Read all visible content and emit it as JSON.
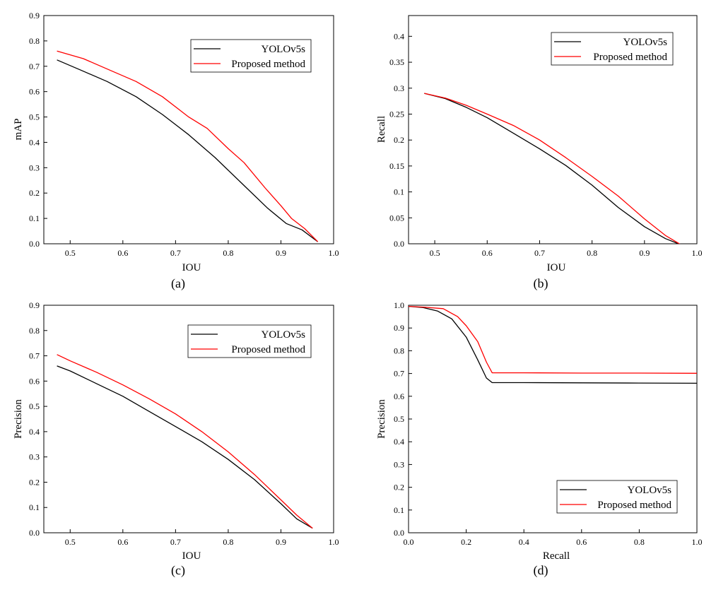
{
  "chart_data": [
    {
      "type": "line",
      "caption": "(a)",
      "xlabel": "IOU",
      "ylabel": "mAP",
      "xlim": [
        0.45,
        1.0
      ],
      "ylim": [
        0.0,
        0.9
      ],
      "xticks": [
        "0.5",
        "0.6",
        "0.7",
        "0.8",
        "0.9",
        "1.0"
      ],
      "xtick_values": [
        0.5,
        0.6,
        0.7,
        0.8,
        0.9,
        1.0
      ],
      "yticks": [
        "0.0",
        "0.1",
        "0.2",
        "0.3",
        "0.4",
        "0.5",
        "0.6",
        "0.7",
        "0.8",
        "0.9"
      ],
      "ytick_values": [
        0.0,
        0.1,
        0.2,
        0.3,
        0.4,
        0.5,
        0.6,
        0.7,
        0.8,
        0.9
      ],
      "legend_position": "top-right",
      "series": [
        {
          "name": "YOLOv5s",
          "color": "#000000",
          "x": [
            0.475,
            0.52,
            0.57,
            0.625,
            0.675,
            0.725,
            0.775,
            0.825,
            0.875,
            0.91,
            0.94,
            0.97
          ],
          "y": [
            0.725,
            0.685,
            0.64,
            0.58,
            0.51,
            0.43,
            0.34,
            0.24,
            0.14,
            0.08,
            0.055,
            0.008
          ]
        },
        {
          "name": "Proposed method",
          "color": "#ff0000",
          "x": [
            0.475,
            0.525,
            0.575,
            0.625,
            0.675,
            0.725,
            0.76,
            0.8,
            0.83,
            0.87,
            0.9,
            0.92,
            0.945,
            0.97
          ],
          "y": [
            0.76,
            0.73,
            0.685,
            0.64,
            0.58,
            0.5,
            0.455,
            0.375,
            0.32,
            0.22,
            0.15,
            0.1,
            0.06,
            0.008
          ]
        }
      ]
    },
    {
      "type": "line",
      "caption": "(b)",
      "xlabel": "IOU",
      "ylabel": "Recall",
      "xlim": [
        0.45,
        1.0
      ],
      "ylim": [
        0.0,
        0.44
      ],
      "xticks": [
        "0.5",
        "0.6",
        "0.7",
        "0.8",
        "0.9",
        "1.0"
      ],
      "xtick_values": [
        0.5,
        0.6,
        0.7,
        0.8,
        0.9,
        1.0
      ],
      "yticks": [
        "0.0",
        "0.05",
        "0.1",
        "0.15",
        "0.2",
        "0.25",
        "0.3",
        "0.35",
        "0.4"
      ],
      "ytick_values": [
        0.0,
        0.05,
        0.1,
        0.15,
        0.2,
        0.25,
        0.3,
        0.35,
        0.4
      ],
      "legend_position": "top-right",
      "series": [
        {
          "name": "YOLOv5s",
          "color": "#000000",
          "x": [
            0.48,
            0.52,
            0.56,
            0.6,
            0.65,
            0.7,
            0.75,
            0.8,
            0.85,
            0.9,
            0.94,
            0.97
          ],
          "y": [
            0.29,
            0.28,
            0.263,
            0.243,
            0.213,
            0.183,
            0.151,
            0.113,
            0.07,
            0.033,
            0.01,
            -0.002
          ]
        },
        {
          "name": "Proposed method",
          "color": "#ff0000",
          "x": [
            0.48,
            0.52,
            0.56,
            0.6,
            0.65,
            0.7,
            0.75,
            0.8,
            0.85,
            0.9,
            0.94,
            0.97
          ],
          "y": [
            0.29,
            0.281,
            0.267,
            0.25,
            0.228,
            0.2,
            0.166,
            0.13,
            0.092,
            0.048,
            0.016,
            -0.002
          ]
        }
      ]
    },
    {
      "type": "line",
      "caption": "(c)",
      "xlabel": "IOU",
      "ylabel": "Precision",
      "xlim": [
        0.45,
        1.0
      ],
      "ylim": [
        0.0,
        0.9
      ],
      "xticks": [
        "0.5",
        "0.6",
        "0.7",
        "0.8",
        "0.9",
        "1.0"
      ],
      "xtick_values": [
        0.5,
        0.6,
        0.7,
        0.8,
        0.9,
        1.0
      ],
      "yticks": [
        "0.0",
        "0.1",
        "0.2",
        "0.3",
        "0.4",
        "0.5",
        "0.6",
        "0.7",
        "0.8",
        "0.9"
      ],
      "ytick_values": [
        0.0,
        0.1,
        0.2,
        0.3,
        0.4,
        0.5,
        0.6,
        0.7,
        0.8,
        0.9
      ],
      "legend_position": "top-right",
      "series": [
        {
          "name": "YOLOv5s",
          "color": "#000000",
          "x": [
            0.475,
            0.5,
            0.55,
            0.6,
            0.65,
            0.7,
            0.75,
            0.8,
            0.85,
            0.9,
            0.93,
            0.96
          ],
          "y": [
            0.66,
            0.64,
            0.59,
            0.54,
            0.48,
            0.42,
            0.36,
            0.29,
            0.21,
            0.115,
            0.055,
            0.018
          ]
        },
        {
          "name": "Proposed method",
          "color": "#ff0000",
          "x": [
            0.475,
            0.5,
            0.55,
            0.6,
            0.65,
            0.7,
            0.75,
            0.8,
            0.85,
            0.9,
            0.93,
            0.96
          ],
          "y": [
            0.705,
            0.68,
            0.635,
            0.585,
            0.53,
            0.47,
            0.4,
            0.32,
            0.23,
            0.13,
            0.07,
            0.018
          ]
        }
      ]
    },
    {
      "type": "line",
      "caption": "(d)",
      "xlabel": "Recall",
      "ylabel": "Precision",
      "xlim": [
        0.0,
        1.0
      ],
      "ylim": [
        0.0,
        1.0
      ],
      "xticks": [
        "0.0",
        "0.2",
        "0.4",
        "0.6",
        "0.8",
        "1.0"
      ],
      "xtick_values": [
        0.0,
        0.2,
        0.4,
        0.6,
        0.8,
        1.0
      ],
      "yticks": [
        "0.0",
        "0.1",
        "0.2",
        "0.3",
        "0.4",
        "0.5",
        "0.6",
        "0.7",
        "0.8",
        "0.9",
        "1.0"
      ],
      "ytick_values": [
        0.0,
        0.1,
        0.2,
        0.3,
        0.4,
        0.5,
        0.6,
        0.7,
        0.8,
        0.9,
        1.0
      ],
      "legend_position": "bottom-right",
      "series": [
        {
          "name": "YOLOv5s",
          "color": "#000000",
          "x": [
            0.0,
            0.05,
            0.1,
            0.15,
            0.2,
            0.24,
            0.27,
            0.29,
            0.4,
            0.6,
            0.8,
            1.0
          ],
          "y": [
            0.995,
            0.99,
            0.975,
            0.94,
            0.86,
            0.76,
            0.68,
            0.66,
            0.66,
            0.659,
            0.658,
            0.657
          ]
        },
        {
          "name": "Proposed method",
          "color": "#ff0000",
          "x": [
            0.0,
            0.05,
            0.12,
            0.17,
            0.2,
            0.24,
            0.27,
            0.29,
            0.4,
            0.6,
            0.8,
            1.0
          ],
          "y": [
            0.995,
            0.992,
            0.985,
            0.95,
            0.91,
            0.84,
            0.75,
            0.703,
            0.703,
            0.702,
            0.702,
            0.701
          ]
        }
      ]
    }
  ]
}
